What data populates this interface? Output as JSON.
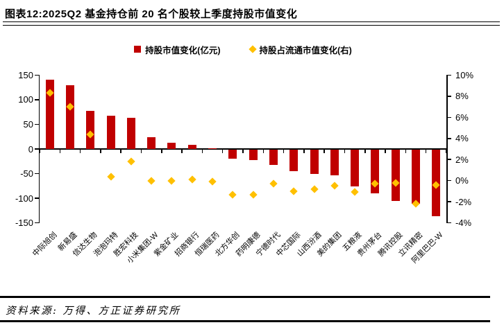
{
  "header": {
    "title": "图表12:2025Q2 基金持仓前 20 名个股较上季度持股市值变化"
  },
  "legend": {
    "bar_series_label": "持股市值变化(亿元)",
    "diamond_series_label": "持股占流通市值变化(右)"
  },
  "footer": {
    "source": "资料来源: 万得、方正证券研究所"
  },
  "colors": {
    "bar": "#C00000",
    "diamond": "#FFC000",
    "axis": "#000000"
  },
  "chart_data": {
    "type": "bar",
    "subtype": "bar-and-diamond-scatter-combo",
    "categories": [
      "中际旭创",
      "新易盛",
      "信达生物",
      "泡泡玛特",
      "胜宏科技",
      "小米集团-W",
      "紫金矿业",
      "招商银行",
      "恒瑞医药",
      "北方华创",
      "药明康德",
      "宁德时代",
      "中芯国际",
      "山西汾酒",
      "美的集团",
      "五粮液",
      "贵州茅台",
      "腾讯控股",
      "立讯精密",
      "阿里巴巴-W"
    ],
    "series": [
      {
        "name": "持股市值变化(亿元)",
        "type": "bar",
        "axis": "left",
        "values": [
          140,
          129,
          77,
          67,
          63,
          24,
          12,
          9,
          1,
          -19,
          -22,
          -33,
          -45,
          -50,
          -54,
          -76,
          -90,
          -106,
          -111,
          -136
        ]
      },
      {
        "name": "持股占流通市值变化(右)",
        "type": "scatter",
        "marker": "diamond",
        "axis": "right",
        "values": [
          8.3,
          7.0,
          4.4,
          0.4,
          1.8,
          0.0,
          0.0,
          0.1,
          -0.1,
          -1.3,
          -1.3,
          -0.3,
          -1.0,
          -0.8,
          -0.5,
          -1.1,
          -0.3,
          -0.2,
          -2.2,
          -0.4
        ]
      }
    ],
    "left_axis": {
      "min": -150,
      "max": 150,
      "step": 50,
      "tick_labels": [
        "150",
        "100",
        "50",
        "0",
        "-50",
        "-100",
        "-150"
      ]
    },
    "right_axis": {
      "min": -4,
      "max": 10,
      "step": 2,
      "unit": "%",
      "tick_labels": [
        "10%",
        "8%",
        "6%",
        "4%",
        "2%",
        "0%",
        "-2%",
        "-4%"
      ]
    },
    "grid": false,
    "legend_position": "top-center"
  }
}
